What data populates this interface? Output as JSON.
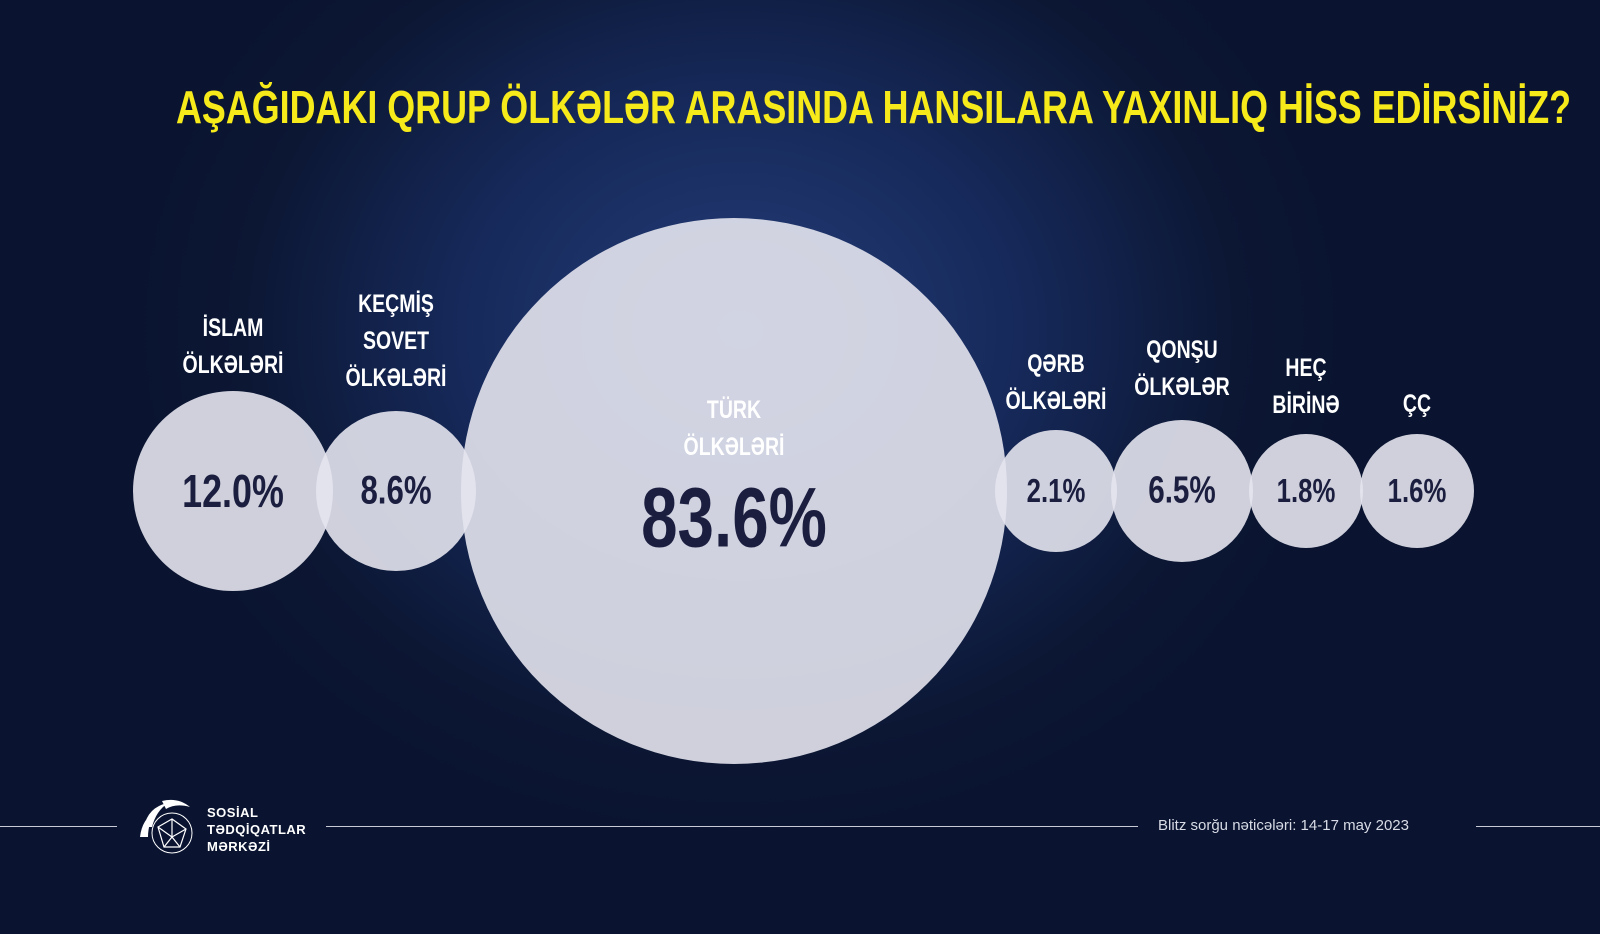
{
  "title": "AŞAĞIDAKI QRUP ÖLKƏLƏR ARASINDA HANSILARA YAXINLIQ HİSS EDİRSİNİZ?",
  "chart_data": {
    "type": "bubble",
    "title": "AŞAĞIDAKI QRUP ÖLKƏLƏR ARASINDA HANSILARA YAXINLIQ HİSS EDİRSİNİZ?",
    "categories": [
      "İSLAM ÖLKƏLƏRİ",
      "KEÇMİŞ SOVET ÖLKƏLƏRİ",
      "TÜRK ÖLKƏLƏRİ",
      "QƏRB ÖLKƏLƏRİ",
      "QONŞU ÖLKƏLƏR",
      "HEÇ BİRİNƏ",
      "ÇÇ"
    ],
    "values": [
      12.0,
      8.6,
      83.6,
      2.1,
      6.5,
      1.8,
      1.6
    ],
    "value_labels": [
      "12.0%",
      "8.6%",
      "83.6%",
      "2.1%",
      "6.5%",
      "1.8%",
      "1.6%"
    ],
    "bubble_color": "#e4e4ee"
  },
  "labels": [
    "İSLAM\nÖLKƏLƏRİ",
    "KEÇMİŞ\nSOVET\nÖLKƏLƏRİ",
    "TÜRK\nÖLKƏLƏRİ",
    "QƏRB\nÖLKƏLƏRİ",
    "QONŞU\nÖLKƏLƏR",
    "HEÇ\nBİRİNƏ",
    "ÇÇ"
  ],
  "logo": {
    "line1": "SOSİAL",
    "line2": "TƏDQİQATLAR",
    "line3": "MƏRKƏZİ"
  },
  "source": "Blitz sorğu nəticələri: 14-17 may 2023",
  "colors": {
    "title": "#f6ea1a",
    "value_text": "#1b1e3f",
    "background": "#0c1734"
  }
}
